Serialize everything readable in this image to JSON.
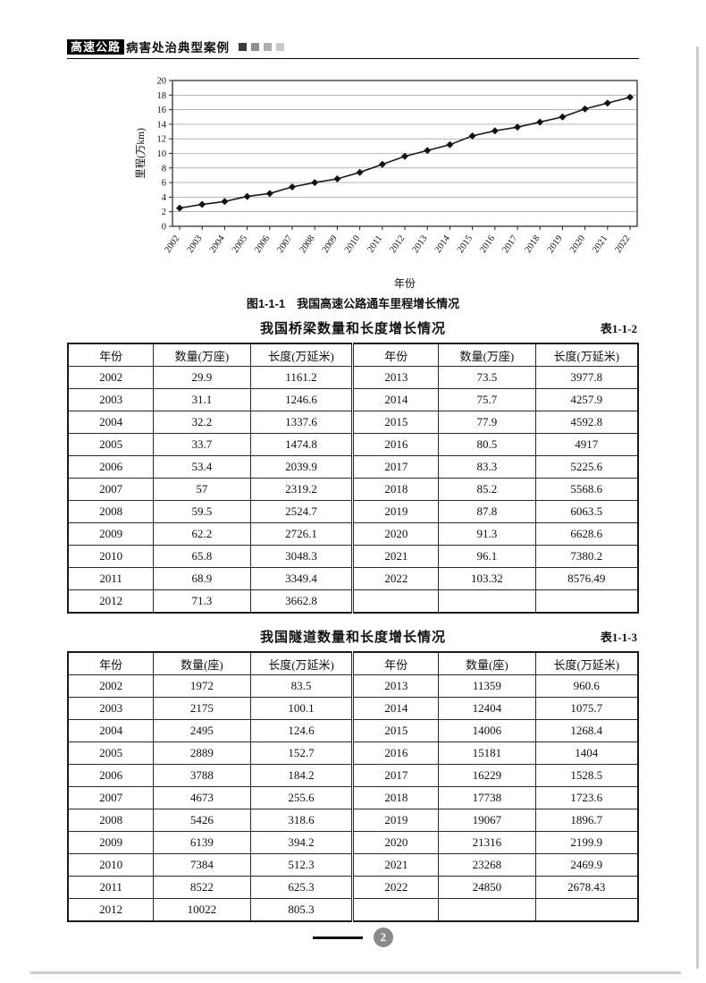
{
  "header": {
    "badge": "高速公路",
    "title": "病害处治典型案例"
  },
  "figure": {
    "caption": "图1-1-1　我国高速公路通车里程增长情况"
  },
  "tables": [
    {
      "title": "我国桥梁数量和长度增长情况",
      "label": "表1-1-2",
      "headers": [
        "年份",
        "数量(万座)",
        "长度(万延米)",
        "年份",
        "数量(万座)",
        "长度(万延米)"
      ],
      "rows": [
        [
          "2002",
          "29.9",
          "1161.2",
          "2013",
          "73.5",
          "3977.8"
        ],
        [
          "2003",
          "31.1",
          "1246.6",
          "2014",
          "75.7",
          "4257.9"
        ],
        [
          "2004",
          "32.2",
          "1337.6",
          "2015",
          "77.9",
          "4592.8"
        ],
        [
          "2005",
          "33.7",
          "1474.8",
          "2016",
          "80.5",
          "4917"
        ],
        [
          "2006",
          "53.4",
          "2039.9",
          "2017",
          "83.3",
          "5225.6"
        ],
        [
          "2007",
          "57",
          "2319.2",
          "2018",
          "85.2",
          "5568.6"
        ],
        [
          "2008",
          "59.5",
          "2524.7",
          "2019",
          "87.8",
          "6063.5"
        ],
        [
          "2009",
          "62.2",
          "2726.1",
          "2020",
          "91.3",
          "6628.6"
        ],
        [
          "2010",
          "65.8",
          "3048.3",
          "2021",
          "96.1",
          "7380.2"
        ],
        [
          "2011",
          "68.9",
          "3349.4",
          "2022",
          "103.32",
          "8576.49"
        ],
        [
          "2012",
          "71.3",
          "3662.8",
          "",
          "",
          ""
        ]
      ]
    },
    {
      "title": "我国隧道数量和长度增长情况",
      "label": "表1-1-3",
      "headers": [
        "年份",
        "数量(座)",
        "长度(万延米)",
        "年份",
        "数量(座)",
        "长度(万延米)"
      ],
      "rows": [
        [
          "2002",
          "1972",
          "83.5",
          "2013",
          "11359",
          "960.6"
        ],
        [
          "2003",
          "2175",
          "100.1",
          "2014",
          "12404",
          "1075.7"
        ],
        [
          "2004",
          "2495",
          "124.6",
          "2015",
          "14006",
          "1268.4"
        ],
        [
          "2005",
          "2889",
          "152.7",
          "2016",
          "15181",
          "1404"
        ],
        [
          "2006",
          "3788",
          "184.2",
          "2017",
          "16229",
          "1528.5"
        ],
        [
          "2007",
          "4673",
          "255.6",
          "2018",
          "17738",
          "1723.6"
        ],
        [
          "2008",
          "5426",
          "318.6",
          "2019",
          "19067",
          "1896.7"
        ],
        [
          "2009",
          "6139",
          "394.2",
          "2020",
          "21316",
          "2199.9"
        ],
        [
          "2010",
          "7384",
          "512.3",
          "2021",
          "23268",
          "2469.9"
        ],
        [
          "2011",
          "8522",
          "625.3",
          "2022",
          "24850",
          "2678.43"
        ],
        [
          "2012",
          "10022",
          "805.3",
          "",
          "",
          ""
        ]
      ]
    }
  ],
  "footer": {
    "page_number": "2"
  },
  "chart_data": {
    "type": "line",
    "title": "我国高速公路通车里程增长情况",
    "x": [
      2002,
      2003,
      2004,
      2005,
      2006,
      2007,
      2008,
      2009,
      2010,
      2011,
      2012,
      2013,
      2014,
      2015,
      2016,
      2017,
      2018,
      2019,
      2020,
      2021,
      2022
    ],
    "values": [
      2.5,
      3.0,
      3.4,
      4.1,
      4.5,
      5.4,
      6.0,
      6.5,
      7.4,
      8.5,
      9.6,
      10.4,
      11.2,
      12.4,
      13.1,
      13.6,
      14.3,
      15.0,
      16.1,
      16.9,
      17.7
    ],
    "xlabel": "年份",
    "ylabel": "里程(万km)",
    "ylim": [
      0,
      20
    ],
    "ytick_step": 2,
    "grid": true,
    "legend": "none",
    "marker": "diamond",
    "line_color": "#1a1a1a",
    "grid_color": "#8a8a8a"
  }
}
